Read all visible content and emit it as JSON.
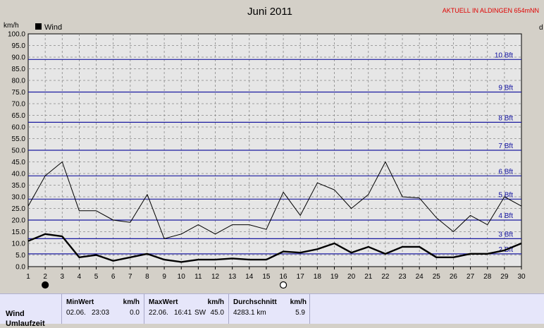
{
  "header": {
    "title": "Juni 2011",
    "station": "AKTUELL IN ALDINGEN 654mNN",
    "y_unit": "km/h",
    "right_unit": "d"
  },
  "legend": {
    "label": "Wind"
  },
  "chart_data": {
    "type": "line",
    "title": "Juni 2011",
    "ylabel": "km/h",
    "xlabel": "",
    "ylim": [
      0,
      100
    ],
    "ytick_step": 5,
    "x": [
      1,
      2,
      3,
      4,
      5,
      6,
      7,
      8,
      9,
      10,
      11,
      12,
      13,
      14,
      15,
      16,
      17,
      18,
      19,
      20,
      21,
      22,
      23,
      24,
      25,
      26,
      27,
      28,
      29,
      30
    ],
    "series": [
      {
        "name": "Wind",
        "role": "average",
        "color": "#000000",
        "values": [
          11,
          14,
          13,
          4,
          5,
          2.5,
          4,
          5.5,
          3,
          2,
          3,
          3,
          3.5,
          3,
          3,
          6.5,
          6,
          7.5,
          10,
          6,
          8.5,
          5.5,
          8.5,
          8.5,
          4,
          4,
          5.5,
          5.5,
          7,
          10
        ]
      },
      {
        "name": "",
        "role": "gust",
        "color": "#000000",
        "values": [
          26,
          39,
          45,
          24,
          24,
          20,
          19,
          31,
          12,
          14,
          18,
          14,
          18,
          18,
          16,
          32,
          22,
          36,
          33,
          25,
          31,
          45,
          30,
          29.5,
          21,
          15,
          22,
          18,
          30,
          26
        ]
      }
    ],
    "beaufort": [
      {
        "label": "2 Bft",
        "kmh": 5.5
      },
      {
        "label": "3 Bft",
        "kmh": 12
      },
      {
        "label": "4 Bft",
        "kmh": 20
      },
      {
        "label": "5 Bft",
        "kmh": 29
      },
      {
        "label": "6 Bft",
        "kmh": 39
      },
      {
        "label": "7 Bft",
        "kmh": 50
      },
      {
        "label": "8 Bft",
        "kmh": 62
      },
      {
        "label": "9 Bft",
        "kmh": 75
      },
      {
        "label": "10 Bft",
        "kmh": 89
      }
    ],
    "grid": true,
    "markers": [
      {
        "day": 2,
        "type": "new-moon"
      },
      {
        "day": 16,
        "type": "full-moon"
      }
    ]
  },
  "stats": {
    "row_label": "Wind",
    "row_label_2": "Umlaufzeit",
    "min": {
      "header": "MinWert",
      "unit": "km/h",
      "date": "02.06.",
      "time": "23:03",
      "value": "0.0"
    },
    "max": {
      "header": "MaxWert",
      "unit": "km/h",
      "date": "22.06.",
      "time": "16:41",
      "dir": "SW",
      "value": "45.0"
    },
    "avg": {
      "header": "Durchschnitt",
      "unit": "km/h",
      "distance": "4283.1 km",
      "value": "5.9"
    }
  }
}
